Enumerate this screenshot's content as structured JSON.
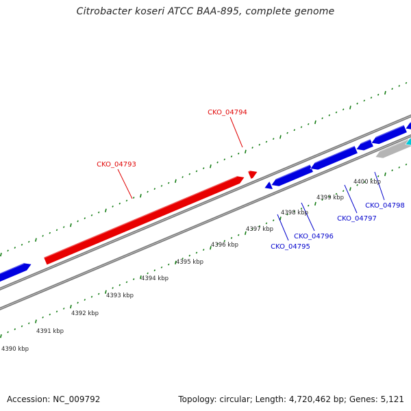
{
  "title": "Citrobacter koseri ATCC BAA-895, complete genome",
  "footer": {
    "accession": "Accession: NC_009792",
    "summary": "Topology: circular; Length: 4,720,462 bp; Genes: 5,121"
  },
  "colors": {
    "forward_strand": "#e80000",
    "reverse_strand": "#0000e0",
    "rna_feature": "#00c8d8",
    "other_feature": "#b4b4b4",
    "backbone": "#888888",
    "ticks": "#0f7a0f",
    "forward_label": "#e00000",
    "reverse_label": "#0000cc"
  },
  "scale_labels": [
    "4390 kbp",
    "4391 kbp",
    "4392 kbp",
    "4393 kbp",
    "4394 kbp",
    "4395 kbp",
    "4396 kbp",
    "4397 kbp",
    "4398 kbp",
    "4399 kbp",
    "4400 kbp"
  ],
  "gene_labels": [
    {
      "name": "CKO_04793",
      "strand": "forward"
    },
    {
      "name": "CKO_04794",
      "strand": "forward"
    },
    {
      "name": "CKO_04795",
      "strand": "reverse"
    },
    {
      "name": "CKO_04796",
      "strand": "reverse"
    },
    {
      "name": "CKO_04797",
      "strand": "reverse"
    },
    {
      "name": "CKO_04798",
      "strand": "reverse"
    }
  ]
}
